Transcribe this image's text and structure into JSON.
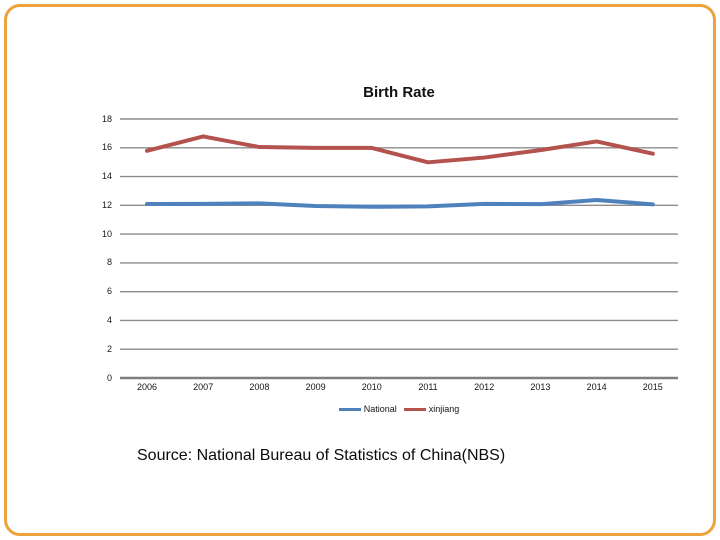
{
  "frame": {
    "border_color": "#ECA23D"
  },
  "chart_data": {
    "type": "line",
    "title": "Birth Rate",
    "categories": [
      "2006",
      "2007",
      "2008",
      "2009",
      "2010",
      "2011",
      "2012",
      "2013",
      "2014",
      "2015"
    ],
    "series": [
      {
        "name": "National",
        "color": "#4F81BD",
        "values": [
          12.09,
          12.1,
          12.14,
          11.95,
          11.9,
          11.93,
          12.1,
          12.08,
          12.37,
          12.07
        ]
      },
      {
        "name": "xinjiang",
        "color": "#B4524D",
        "values": [
          15.79,
          16.79,
          16.05,
          15.99,
          15.99,
          14.99,
          15.32,
          15.84,
          16.44,
          15.59
        ]
      }
    ],
    "xlabel": "",
    "ylabel": "",
    "ylim": [
      0,
      18
    ],
    "ytick_step": 2,
    "grid": "horizontal",
    "gridline_color": "#8C8C8C",
    "axis_line_color": "#7F7F7F",
    "legend_position": "bottom"
  },
  "source_note": "Source: National Bureau of Statistics of China(NBS)"
}
